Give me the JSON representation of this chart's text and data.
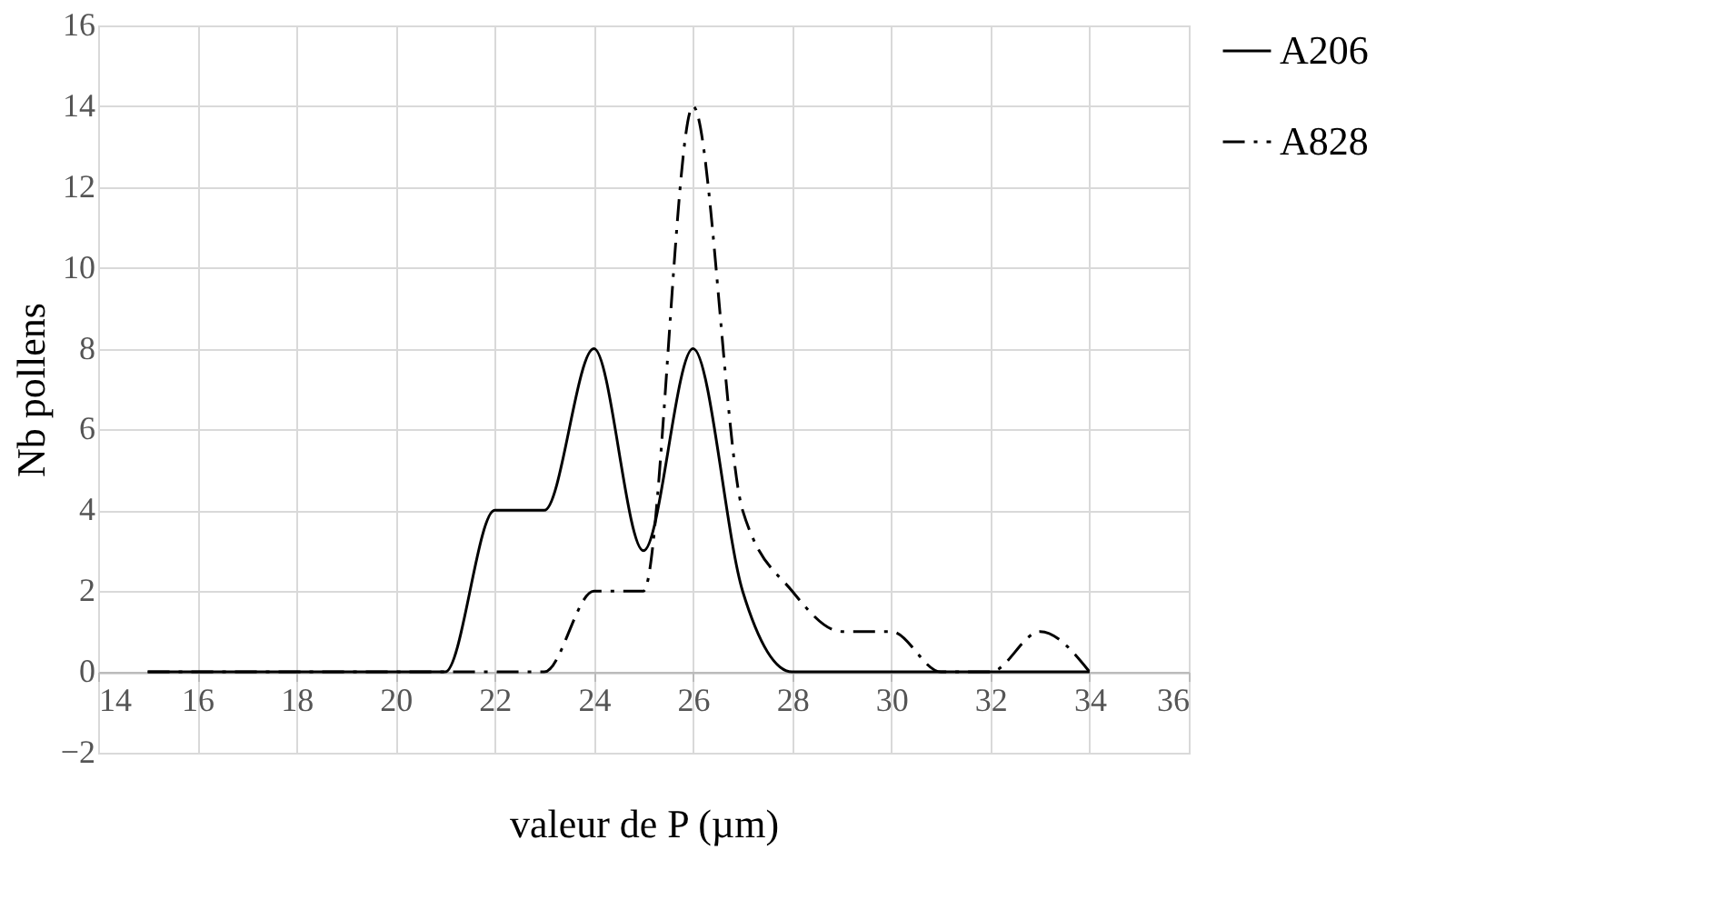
{
  "chart_data": {
    "type": "line",
    "xlabel": "valeur de P (µm)",
    "ylabel": "Nb pollens",
    "x": [
      15,
      16,
      17,
      18,
      19,
      20,
      21,
      22,
      23,
      24,
      25,
      26,
      27,
      28,
      29,
      30,
      31,
      32,
      33,
      34
    ],
    "series": [
      {
        "name": "A206",
        "color": "#000000",
        "line_style": "solid",
        "values": [
          0,
          0,
          0,
          0,
          0,
          0,
          0,
          4,
          4,
          8,
          3,
          8,
          2,
          0,
          0,
          0,
          0,
          0,
          0,
          0
        ]
      },
      {
        "name": "A828",
        "color": "#000000",
        "line_style": "dashdot",
        "values": [
          0,
          0,
          0,
          0,
          0,
          0,
          0,
          0,
          0,
          2,
          2,
          14,
          4,
          2,
          1,
          1,
          0,
          0,
          1,
          0
        ]
      }
    ],
    "xlim": [
      14,
      36
    ],
    "xticks": [
      14,
      16,
      18,
      20,
      22,
      24,
      26,
      28,
      30,
      32,
      34,
      36
    ],
    "ylim": [
      -2,
      16
    ],
    "yticks": [
      -2,
      0,
      2,
      4,
      6,
      8,
      10,
      12,
      14,
      16
    ],
    "grid": true,
    "legend": "right",
    "marker": "none"
  }
}
